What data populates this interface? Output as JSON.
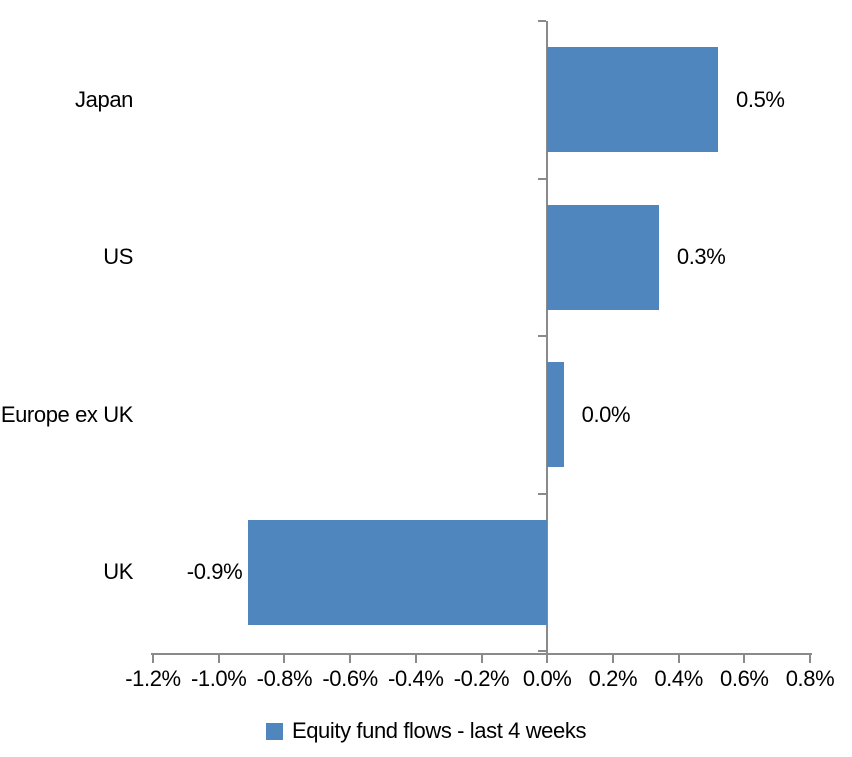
{
  "chart_data": {
    "type": "bar",
    "orientation": "horizontal",
    "title": "",
    "categories": [
      "Japan",
      "US",
      "Europe ex UK",
      "UK"
    ],
    "values": [
      0.5,
      0.3,
      0.0,
      -0.9
    ],
    "bar_extents_pct": [
      0.52,
      0.34,
      0.05,
      -0.91
    ],
    "data_labels": [
      "0.5%",
      "0.3%",
      "0.0%",
      "-0.9%"
    ],
    "series": [
      {
        "name": "Equity fund flows - last 4 weeks",
        "values": [
          0.5,
          0.3,
          0.0,
          -0.9
        ]
      }
    ],
    "xlabel": "",
    "ylabel": "",
    "xlim": [
      -1.2,
      0.8
    ],
    "x_ticks": [
      -1.2,
      -1.0,
      -0.8,
      -0.6,
      -0.4,
      -0.2,
      0.0,
      0.2,
      0.4,
      0.6,
      0.8
    ],
    "x_tick_labels": [
      "-1.2%",
      "-1.0%",
      "-0.8%",
      "-0.6%",
      "-0.4%",
      "-0.2%",
      "0.0%",
      "0.2%",
      "0.4%",
      "0.6%",
      "0.8%"
    ],
    "grid": false,
    "legend_position": "bottom",
    "colors": {
      "bar": "#4E86BD",
      "axis": "#8A8A8A",
      "text": "#000000",
      "background": "#FFFFFF"
    }
  },
  "legend": {
    "label": "Equity fund flows - last 4 weeks",
    "marker_color": "#4E86BD"
  }
}
